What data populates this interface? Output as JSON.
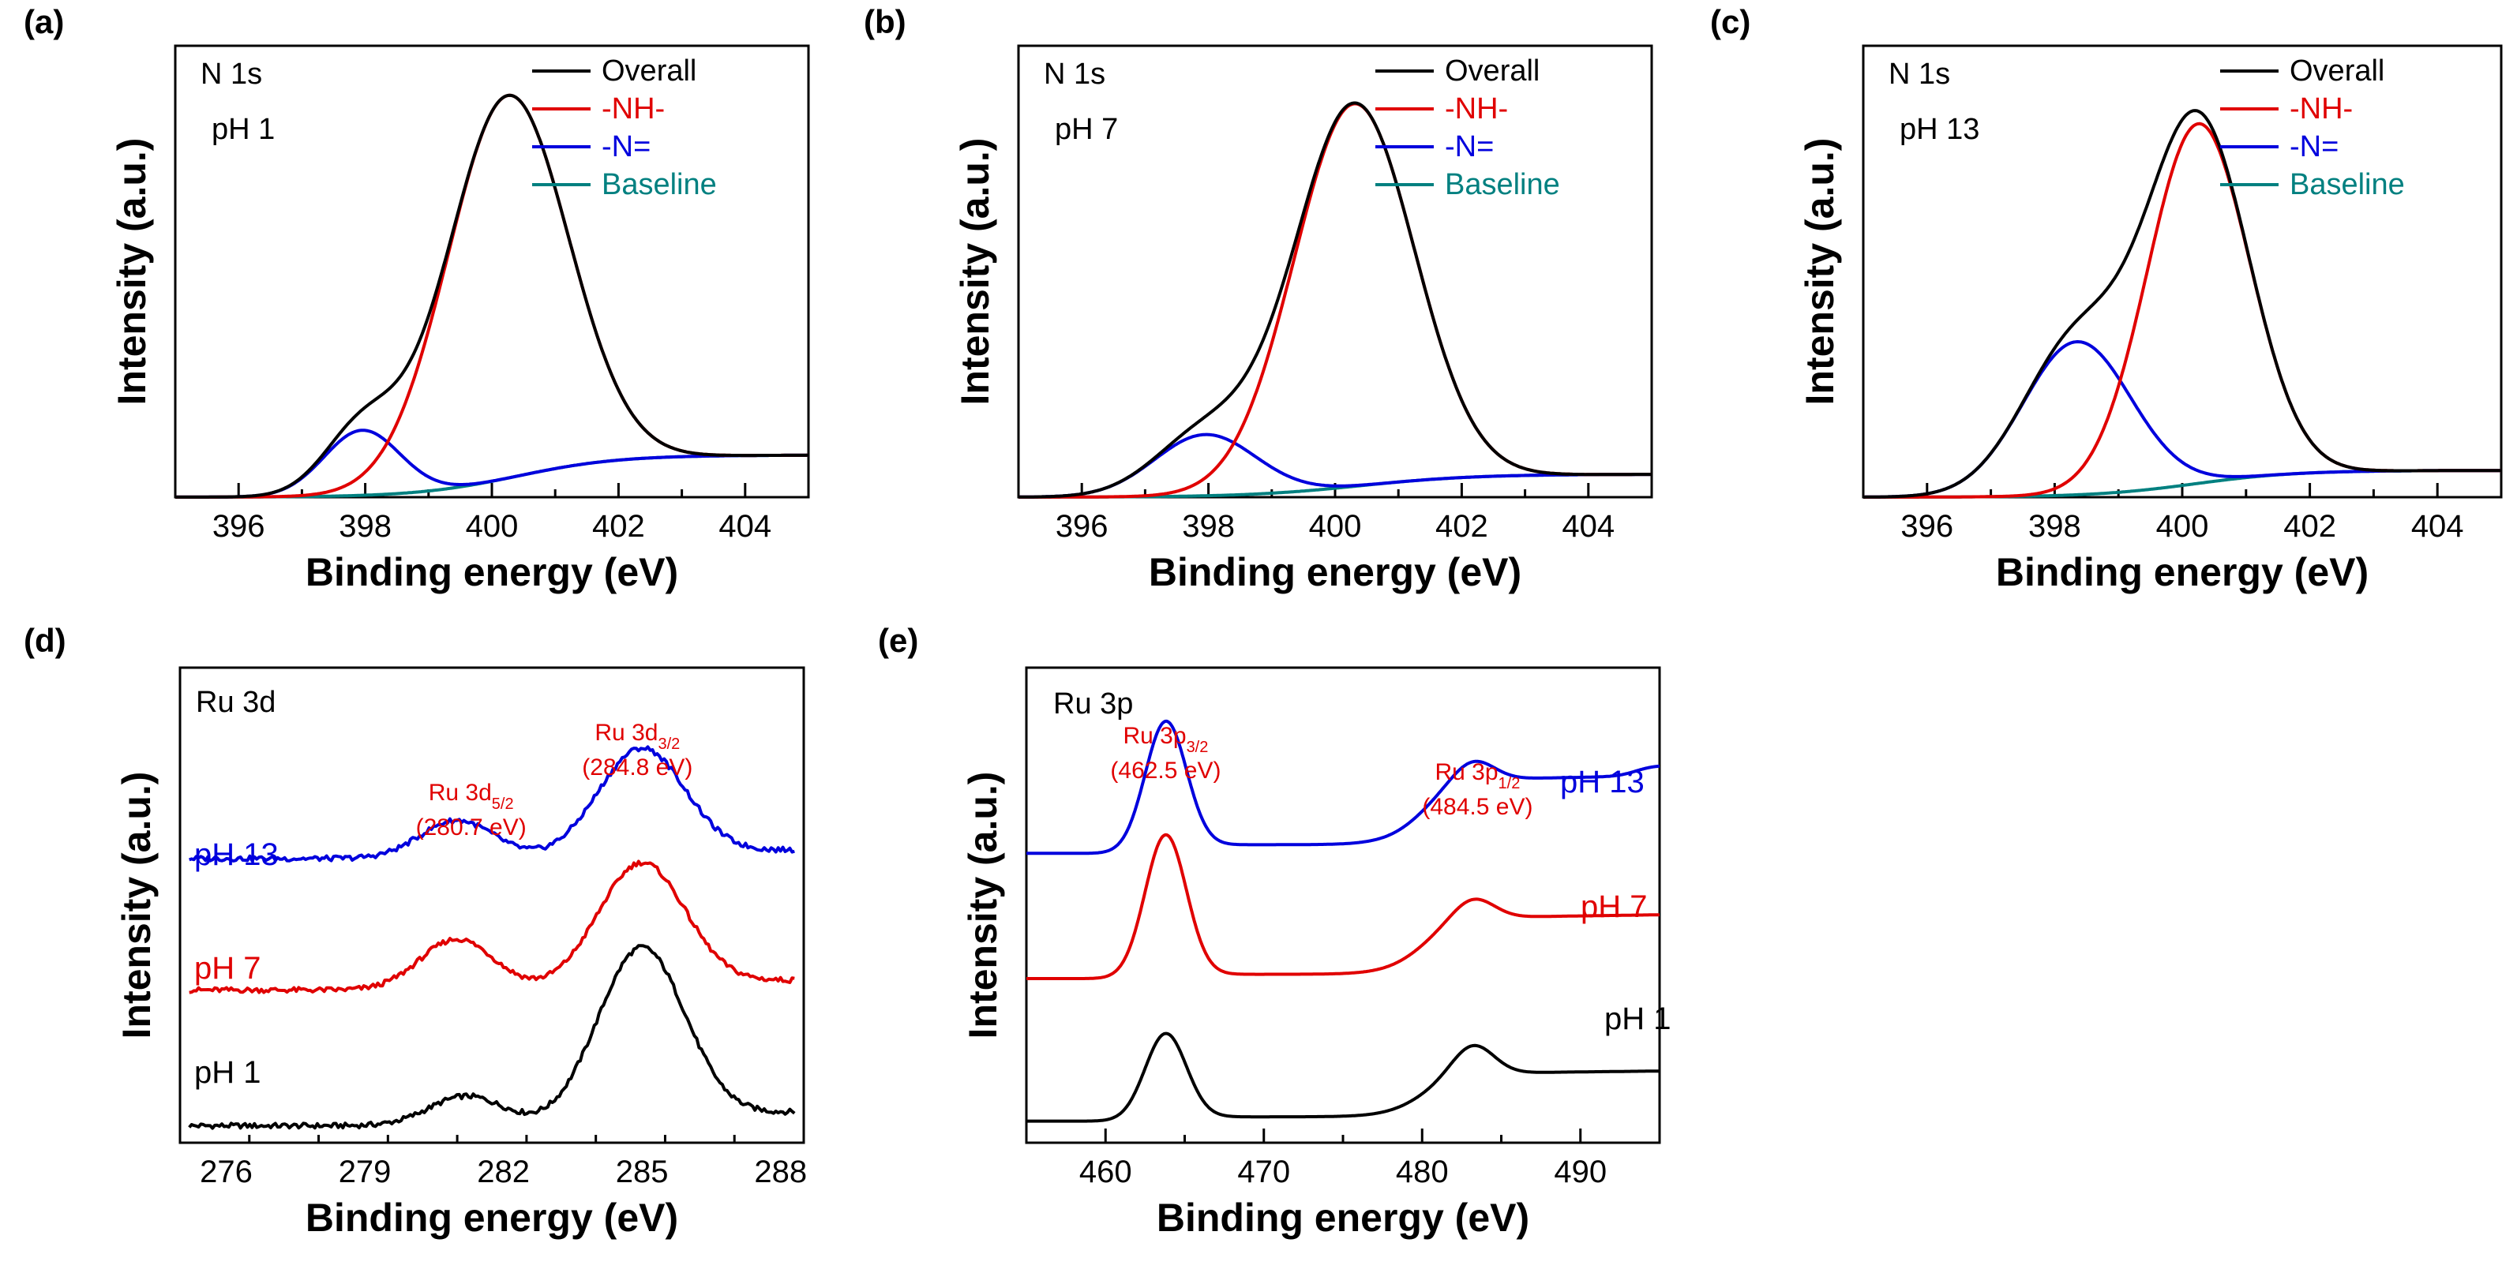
{
  "chart_data": [
    {
      "panel": "(a)",
      "type": "line",
      "spectrum": "N 1s",
      "condition": "pH 1",
      "xlabel": "Binding energy (eV)",
      "ylabel": "Intensity (a.u.)",
      "xlim": [
        395,
        405
      ],
      "ylim": [
        0,
        1.18
      ],
      "xticks": [
        "396",
        "398",
        "400",
        "402",
        "404"
      ],
      "legend": [
        "Overall",
        "-NH-",
        "-N="
      ],
      "baseline_label": "Baseline",
      "colors": {
        "overall": "#000000",
        "nh": "#e00000",
        "n": "#0000dd",
        "baseline": "#008080"
      },
      "peaks": {
        "nh": {
          "center": 400.25,
          "height": 1.0,
          "width": 0.95
        },
        "n": {
          "center": 397.95,
          "height": 0.17,
          "width": 0.6
        }
      },
      "baseline": {
        "low": 0.0,
        "high": 0.11,
        "mid": 400.4,
        "span": 0.8
      }
    },
    {
      "panel": "(b)",
      "type": "line",
      "spectrum": "N 1s",
      "condition": "pH 7",
      "xlabel": "Binding energy (eV)",
      "ylabel": "Intensity (a.u.)",
      "xlim": [
        395,
        405
      ],
      "ylim": [
        0,
        1.18
      ],
      "xticks": [
        "396",
        "398",
        "400",
        "402",
        "404"
      ],
      "legend": [
        "Overall",
        "-NH-",
        "-N="
      ],
      "baseline_label": "Baseline",
      "colors": {
        "overall": "#000000",
        "nh": "#e00000",
        "n": "#0000dd",
        "baseline": "#008080"
      },
      "peaks": {
        "nh": {
          "center": 400.3,
          "height": 1.0,
          "width": 0.95
        },
        "n": {
          "center": 397.95,
          "height": 0.16,
          "width": 0.8
        }
      },
      "baseline": {
        "low": 0.0,
        "high": 0.06,
        "mid": 400.4,
        "span": 0.9
      }
    },
    {
      "panel": "(c)",
      "type": "line",
      "spectrum": "N 1s",
      "condition": "pH 13",
      "xlabel": "Binding energy (eV)",
      "ylabel": "Intensity (a.u.)",
      "xlim": [
        395,
        405
      ],
      "ylim": [
        0,
        1.18
      ],
      "xticks": [
        "396",
        "398",
        "400",
        "402",
        "404"
      ],
      "legend": [
        "Overall",
        "-NH-",
        "-N="
      ],
      "baseline_label": "Baseline",
      "colors": {
        "overall": "#000000",
        "nh": "#e00000",
        "n": "#0000dd",
        "baseline": "#008080"
      },
      "peaks": {
        "nh": {
          "center": 400.25,
          "height": 0.94,
          "width": 0.8
        },
        "n": {
          "center": 398.35,
          "height": 0.4,
          "width": 0.85
        }
      },
      "baseline": {
        "low": 0.0,
        "high": 0.07,
        "mid": 400.2,
        "span": 0.8
      }
    },
    {
      "panel": "(d)",
      "type": "line",
      "spectrum": "Ru 3d",
      "xlabel": "Binding energy (eV)",
      "ylabel": "Intensity (a.u.)",
      "xlim": [
        275,
        288.5
      ],
      "ylim": [
        0,
        1.12
      ],
      "xticks": [
        "276",
        "279",
        "282",
        "285",
        "288"
      ],
      "annotations": [
        {
          "name": "Ru 3d",
          "sub": "5/2",
          "energy": "(280.7 eV)",
          "x": 281.3
        },
        {
          "name": "Ru 3d",
          "sub": "3/2",
          "energy": "(284.8 eV)",
          "x": 284.9
        }
      ],
      "series": [
        {
          "name": "pH 1",
          "color": "#000000",
          "offset": 0.04,
          "shoulder": 0.07,
          "main": 0.42,
          "shoulder_center": 281.2,
          "main_center": 285.0
        },
        {
          "name": "pH 7",
          "color": "#e00000",
          "offset": 0.36,
          "shoulder": 0.12,
          "main": 0.3,
          "shoulder_center": 281.0,
          "main_center": 285.0
        },
        {
          "name": "pH 13",
          "color": "#0000dd",
          "offset": 0.67,
          "shoulder": 0.09,
          "main": 0.26,
          "shoulder_center": 281.0,
          "main_center": 285.0
        }
      ]
    },
    {
      "panel": "(e)",
      "type": "line",
      "spectrum": "Ru 3p",
      "xlabel": "Binding energy (eV)",
      "ylabel": "Intensity (a.u.)",
      "xlim": [
        455,
        495
      ],
      "ylim": [
        0,
        1.1
      ],
      "xticks": [
        "460",
        "470",
        "480",
        "490"
      ],
      "annotations": [
        {
          "name": "Ru 3p",
          "sub": "3/2",
          "energy": "(462.5 eV)",
          "x": 463.8
        },
        {
          "name": "Ru 3p",
          "sub": "1/2",
          "energy": "(484.5 eV)",
          "x": 483.5
        }
      ],
      "series": [
        {
          "name": "pH 1",
          "color": "#000000",
          "offset": 0.05,
          "peak1": 0.2,
          "peak2": 0.07,
          "slope": 0.1
        },
        {
          "name": "pH 7",
          "color": "#e00000",
          "offset": 0.38,
          "peak1": 0.33,
          "peak2": 0.05,
          "slope": 0.13
        },
        {
          "name": "pH 13",
          "color": "#0000dd",
          "offset": 0.67,
          "peak1": 0.3,
          "peak2": 0.05,
          "slope": 0.15
        }
      ]
    }
  ]
}
